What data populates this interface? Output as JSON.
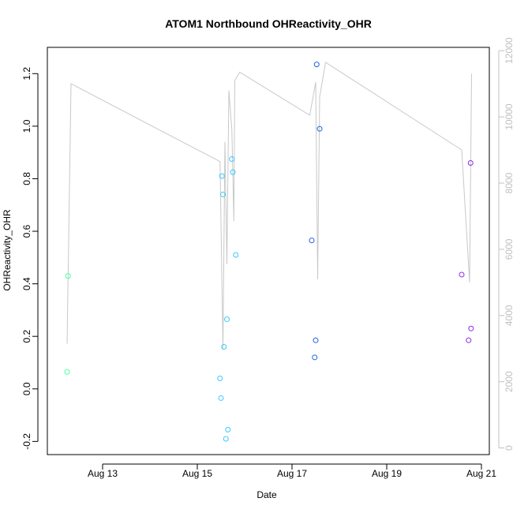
{
  "chart_data": {
    "type": "scatter",
    "title": "ATOM1 Northbound OHReactivity_OHR",
    "xlabel": "Date",
    "ylabel": "OHReactivity_OHR",
    "x_is_date": true,
    "xlim": [
      "2018-08-11 20:00",
      "2018-08-21 04:00"
    ],
    "ylim": [
      -0.25,
      1.3
    ],
    "y_ticks": [
      -0.2,
      0.0,
      0.2,
      0.4,
      0.6,
      0.8,
      1.0,
      1.2
    ],
    "x_ticks": [
      {
        "date": "2018-08-13 00:00",
        "label": "Aug 13"
      },
      {
        "date": "2018-08-15 00:00",
        "label": "Aug 15"
      },
      {
        "date": "2018-08-17 00:00",
        "label": "Aug 17"
      },
      {
        "date": "2018-08-19 00:00",
        "label": "Aug 19"
      },
      {
        "date": "2018-08-21 00:00",
        "label": "Aug 21"
      }
    ],
    "y2lim": [
      -200,
      12100
    ],
    "y2_ticks": [
      0,
      2000,
      4000,
      6000,
      8000,
      10000,
      12000
    ],
    "grid": false,
    "series": [
      {
        "marker": "open-circle",
        "points": [
          {
            "x": "2018-08-12 06:30",
            "y": 0.43,
            "color": "#4dffa6"
          },
          {
            "x": "2018-08-12 06:00",
            "y": 0.065,
            "color": "#4dffa6"
          },
          {
            "x": "2018-08-15 12:30",
            "y": 0.81,
            "color": "#3bc8ff"
          },
          {
            "x": "2018-08-15 13:00",
            "y": 0.74,
            "color": "#3bc8ff"
          },
          {
            "x": "2018-08-15 17:30",
            "y": 0.875,
            "color": "#3bc8ff"
          },
          {
            "x": "2018-08-15 18:00",
            "y": 0.825,
            "color": "#3bc8ff"
          },
          {
            "x": "2018-08-15 19:30",
            "y": 0.51,
            "color": "#3bc8ff"
          },
          {
            "x": "2018-08-15 15:00",
            "y": 0.265,
            "color": "#3bc8ff"
          },
          {
            "x": "2018-08-15 13:30",
            "y": 0.16,
            "color": "#3bc8ff"
          },
          {
            "x": "2018-08-15 11:30",
            "y": 0.04,
            "color": "#3bc8ff"
          },
          {
            "x": "2018-08-15 12:00",
            "y": -0.035,
            "color": "#3bc8ff"
          },
          {
            "x": "2018-08-15 15:30",
            "y": -0.155,
            "color": "#3bc8ff"
          },
          {
            "x": "2018-08-15 14:30",
            "y": -0.19,
            "color": "#3bc8ff"
          },
          {
            "x": "2018-08-17 12:30",
            "y": 1.235,
            "color": "#1f5fe0"
          },
          {
            "x": "2018-08-17 14:00",
            "y": 0.99,
            "color": "#1f5fe0"
          },
          {
            "x": "2018-08-17 10:00",
            "y": 0.565,
            "color": "#1f5fe0"
          },
          {
            "x": "2018-08-17 12:00",
            "y": 0.185,
            "color": "#1f5fe0"
          },
          {
            "x": "2018-08-17 11:30",
            "y": 0.12,
            "color": "#1f5fe0"
          },
          {
            "x": "2018-08-20 18:30",
            "y": 0.86,
            "color": "#8a2be2"
          },
          {
            "x": "2018-08-20 14:00",
            "y": 0.435,
            "color": "#8a2be2"
          },
          {
            "x": "2018-08-20 18:45",
            "y": 0.23,
            "color": "#8a2be2"
          },
          {
            "x": "2018-08-20 17:30",
            "y": 0.185,
            "color": "#8a2be2"
          }
        ]
      },
      {
        "axis": "right",
        "line_color": "#c8c8c8",
        "points": [
          {
            "x": "2018-08-12 06:00",
            "y": 3150
          },
          {
            "x": "2018-08-12 08:00",
            "y": 11000
          },
          {
            "x": "2018-08-15 11:30",
            "y": 8650
          },
          {
            "x": "2018-08-15 13:00",
            "y": 3000
          },
          {
            "x": "2018-08-15 14:00",
            "y": 9250
          },
          {
            "x": "2018-08-15 15:00",
            "y": 5550
          },
          {
            "x": "2018-08-15 16:00",
            "y": 10800
          },
          {
            "x": "2018-08-15 17:30",
            "y": 9600
          },
          {
            "x": "2018-08-15 18:30",
            "y": 6850
          },
          {
            "x": "2018-08-15 19:00",
            "y": 11100
          },
          {
            "x": "2018-08-15 21:30",
            "y": 11350
          },
          {
            "x": "2018-08-17 09:00",
            "y": 10050
          },
          {
            "x": "2018-08-17 12:00",
            "y": 11050
          },
          {
            "x": "2018-08-17 13:00",
            "y": 5100
          },
          {
            "x": "2018-08-17 14:00",
            "y": 10600
          },
          {
            "x": "2018-08-17 17:00",
            "y": 11650
          },
          {
            "x": "2018-08-20 14:00",
            "y": 9000
          },
          {
            "x": "2018-08-20 18:00",
            "y": 5000
          },
          {
            "x": "2018-08-20 19:00",
            "y": 11300
          }
        ]
      }
    ]
  }
}
